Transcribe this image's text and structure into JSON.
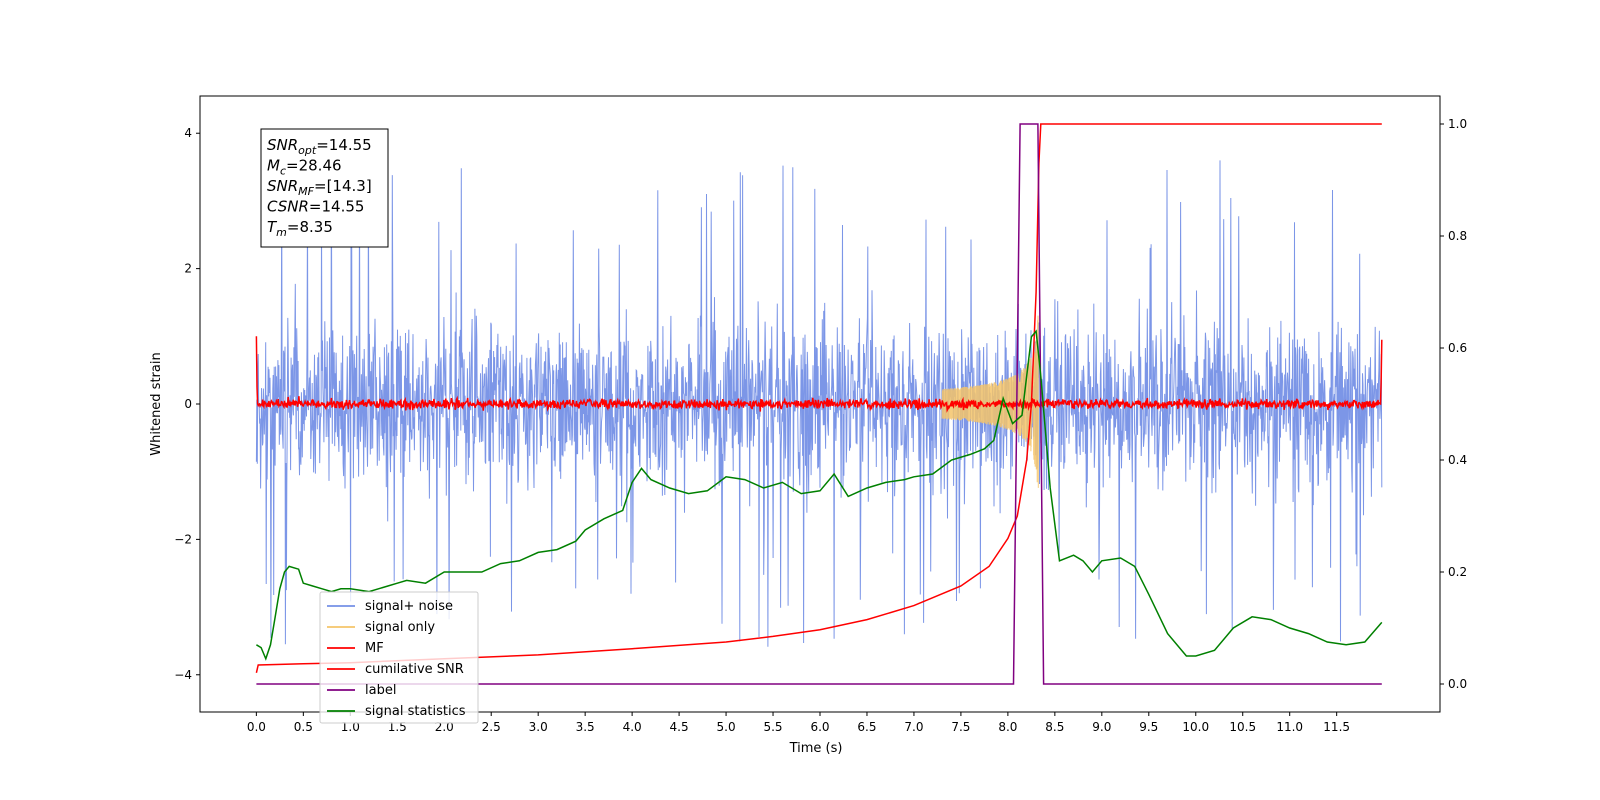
{
  "chart_data": {
    "type": "line",
    "xlabel": "Time (s)",
    "ylabel": "Whitened strain",
    "xlim": [
      -0.6,
      12.6
    ],
    "ylim": [
      -4.55,
      4.55
    ],
    "ylim_right": [
      -0.05,
      1.05
    ],
    "x_ticks": [
      0.0,
      0.5,
      1.0,
      1.5,
      2.0,
      2.5,
      3.0,
      3.5,
      4.0,
      4.5,
      5.0,
      5.5,
      6.0,
      6.5,
      7.0,
      7.5,
      8.0,
      8.5,
      9.0,
      9.5,
      10.0,
      10.5,
      11.0,
      11.5
    ],
    "x_tick_labels": [
      "0.0",
      "0.5",
      "1.0",
      "1.5",
      "2.0",
      "2.5",
      "3.0",
      "3.5",
      "4.0",
      "4.5",
      "5.0",
      "5.5",
      "6.0",
      "6.5",
      "7.0",
      "7.5",
      "8.0",
      "8.5",
      "9.0",
      "9.5",
      "10.0",
      "10.5",
      "11.0",
      "11.5"
    ],
    "y_ticks": [
      -4,
      -2,
      0,
      2,
      4
    ],
    "y_tick_labels": [
      "−4",
      "−2",
      "0",
      "2",
      "4"
    ],
    "y_ticks_right": [
      0.0,
      0.2,
      0.4,
      0.6,
      0.8,
      1.0
    ],
    "y_tick_labels_right": [
      "0.0",
      "0.2",
      "0.4",
      "0.6",
      "0.8",
      "1.0"
    ],
    "grid": false,
    "legend_position": "lower-left",
    "annotation_box": [
      {
        "base": "SNR",
        "sub": "opt",
        "rest": "=14.55"
      },
      {
        "base": "M",
        "sub": "c",
        "rest": "=28.46"
      },
      {
        "base": "SNR",
        "sub": "MF",
        "rest": "=[14.3]"
      },
      {
        "base": "CSNR",
        "sub": "",
        "rest": "=14.55"
      },
      {
        "base": "T",
        "sub": "m",
        "rest": "=8.35"
      }
    ],
    "series": [
      {
        "name": "signal+ noise",
        "color": "#7590e6",
        "axis": "left",
        "description_values": "noise band approx ±2 with spikes to ±3.5",
        "envelope": {
          "x_start": 0.0,
          "x_end": 11.98,
          "amplitude": 1.6,
          "max_peak": 3.6
        }
      },
      {
        "name": "signal only",
        "color": "#f5c46a",
        "axis": "left",
        "chirp": {
          "start": 7.3,
          "peak_t": 8.33,
          "peak_amp": 1.6,
          "end": 8.4
        }
      },
      {
        "name": "MF",
        "color": "#ff0000",
        "axis": "left",
        "noise": {
          "x_start": 0.0,
          "x_end": 11.98,
          "amplitude": 0.1
        },
        "edge_values": {
          "start": 1.0,
          "end": 0.95
        }
      },
      {
        "name": "cumilative SNR",
        "color": "#ff0000",
        "axis": "right",
        "points": [
          [
            0.0,
            0.02
          ],
          [
            0.02,
            0.034
          ],
          [
            0.5,
            0.036
          ],
          [
            1.0,
            0.038
          ],
          [
            2.0,
            0.045
          ],
          [
            3.0,
            0.052
          ],
          [
            4.0,
            0.063
          ],
          [
            5.0,
            0.075
          ],
          [
            5.5,
            0.085
          ],
          [
            6.0,
            0.097
          ],
          [
            6.5,
            0.115
          ],
          [
            7.0,
            0.14
          ],
          [
            7.5,
            0.175
          ],
          [
            7.8,
            0.21
          ],
          [
            8.0,
            0.26
          ],
          [
            8.1,
            0.3
          ],
          [
            8.2,
            0.4
          ],
          [
            8.25,
            0.5
          ],
          [
            8.3,
            0.7
          ],
          [
            8.33,
            0.93
          ],
          [
            8.35,
            1.0
          ],
          [
            11.98,
            1.0
          ]
        ]
      },
      {
        "name": "label",
        "color": "#800080",
        "axis": "right",
        "points": [
          [
            0.0,
            0.0
          ],
          [
            8.06,
            0.0
          ],
          [
            8.13,
            1.0
          ],
          [
            8.32,
            1.0
          ],
          [
            8.38,
            0.0
          ],
          [
            11.98,
            0.0
          ]
        ]
      },
      {
        "name": "signal statistics",
        "color": "#008000",
        "axis": "right",
        "points": [
          [
            0.0,
            0.07
          ],
          [
            0.05,
            0.065
          ],
          [
            0.1,
            0.045
          ],
          [
            0.15,
            0.07
          ],
          [
            0.2,
            0.12
          ],
          [
            0.25,
            0.17
          ],
          [
            0.3,
            0.2
          ],
          [
            0.35,
            0.21
          ],
          [
            0.45,
            0.205
          ],
          [
            0.5,
            0.18
          ],
          [
            0.6,
            0.175
          ],
          [
            0.7,
            0.17
          ],
          [
            0.8,
            0.165
          ],
          [
            0.9,
            0.17
          ],
          [
            1.0,
            0.17
          ],
          [
            1.2,
            0.165
          ],
          [
            1.4,
            0.175
          ],
          [
            1.5,
            0.18
          ],
          [
            1.6,
            0.185
          ],
          [
            1.8,
            0.18
          ],
          [
            2.0,
            0.2
          ],
          [
            2.2,
            0.2
          ],
          [
            2.4,
            0.2
          ],
          [
            2.6,
            0.215
          ],
          [
            2.8,
            0.22
          ],
          [
            3.0,
            0.235
          ],
          [
            3.2,
            0.24
          ],
          [
            3.4,
            0.255
          ],
          [
            3.5,
            0.275
          ],
          [
            3.7,
            0.295
          ],
          [
            3.9,
            0.31
          ],
          [
            4.0,
            0.36
          ],
          [
            4.1,
            0.385
          ],
          [
            4.2,
            0.365
          ],
          [
            4.4,
            0.35
          ],
          [
            4.6,
            0.34
          ],
          [
            4.8,
            0.345
          ],
          [
            5.0,
            0.37
          ],
          [
            5.2,
            0.365
          ],
          [
            5.4,
            0.35
          ],
          [
            5.6,
            0.36
          ],
          [
            5.8,
            0.34
          ],
          [
            6.0,
            0.345
          ],
          [
            6.15,
            0.375
          ],
          [
            6.3,
            0.335
          ],
          [
            6.5,
            0.35
          ],
          [
            6.7,
            0.36
          ],
          [
            6.9,
            0.365
          ],
          [
            7.0,
            0.37
          ],
          [
            7.2,
            0.375
          ],
          [
            7.4,
            0.4
          ],
          [
            7.6,
            0.41
          ],
          [
            7.75,
            0.42
          ],
          [
            7.85,
            0.435
          ],
          [
            7.95,
            0.51
          ],
          [
            8.05,
            0.465
          ],
          [
            8.15,
            0.48
          ],
          [
            8.25,
            0.62
          ],
          [
            8.3,
            0.63
          ],
          [
            8.35,
            0.55
          ],
          [
            8.45,
            0.35
          ],
          [
            8.55,
            0.22
          ],
          [
            8.7,
            0.23
          ],
          [
            8.8,
            0.22
          ],
          [
            8.9,
            0.2
          ],
          [
            9.0,
            0.22
          ],
          [
            9.2,
            0.225
          ],
          [
            9.35,
            0.21
          ],
          [
            9.5,
            0.16
          ],
          [
            9.7,
            0.09
          ],
          [
            9.9,
            0.05
          ],
          [
            10.0,
            0.05
          ],
          [
            10.2,
            0.06
          ],
          [
            10.4,
            0.1
          ],
          [
            10.6,
            0.12
          ],
          [
            10.8,
            0.115
          ],
          [
            11.0,
            0.1
          ],
          [
            11.2,
            0.09
          ],
          [
            11.4,
            0.075
          ],
          [
            11.6,
            0.07
          ],
          [
            11.8,
            0.075
          ],
          [
            11.98,
            0.11
          ]
        ]
      }
    ]
  }
}
